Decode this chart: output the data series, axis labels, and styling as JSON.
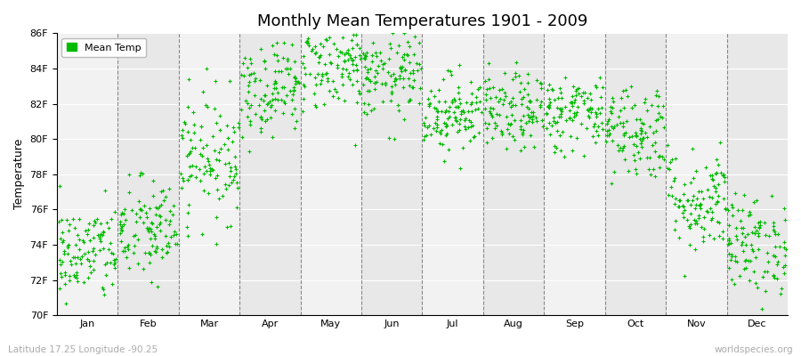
{
  "title": "Monthly Mean Temperatures 1901 - 2009",
  "ylabel": "Temperature",
  "xlabel_bottom_left": "Latitude 17.25 Longitude -90.25",
  "xlabel_bottom_right": "worldspecies.org",
  "ylim": [
    70,
    86
  ],
  "ytick_labels": [
    "70F",
    "72F",
    "74F",
    "76F",
    "78F",
    "80F",
    "82F",
    "84F",
    "86F"
  ],
  "ytick_values": [
    70,
    72,
    74,
    76,
    78,
    80,
    82,
    84,
    86
  ],
  "month_names": [
    "Jan",
    "Feb",
    "Mar",
    "Apr",
    "May",
    "Jun",
    "Jul",
    "Aug",
    "Sep",
    "Oct",
    "Nov",
    "Dec"
  ],
  "dot_color": "#00bb00",
  "dot_size": 6,
  "bg_color_light": "#f2f2f2",
  "bg_color_dark": "#e8e8e8",
  "legend_label": "Mean Temp",
  "monthly_means": [
    73.5,
    74.8,
    79.0,
    83.0,
    84.2,
    83.5,
    81.5,
    81.5,
    81.5,
    80.5,
    76.5,
    74.0
  ],
  "monthly_stds": [
    1.4,
    1.5,
    1.8,
    1.4,
    1.3,
    1.2,
    1.1,
    1.1,
    1.1,
    1.4,
    1.5,
    1.4
  ],
  "years": 109
}
